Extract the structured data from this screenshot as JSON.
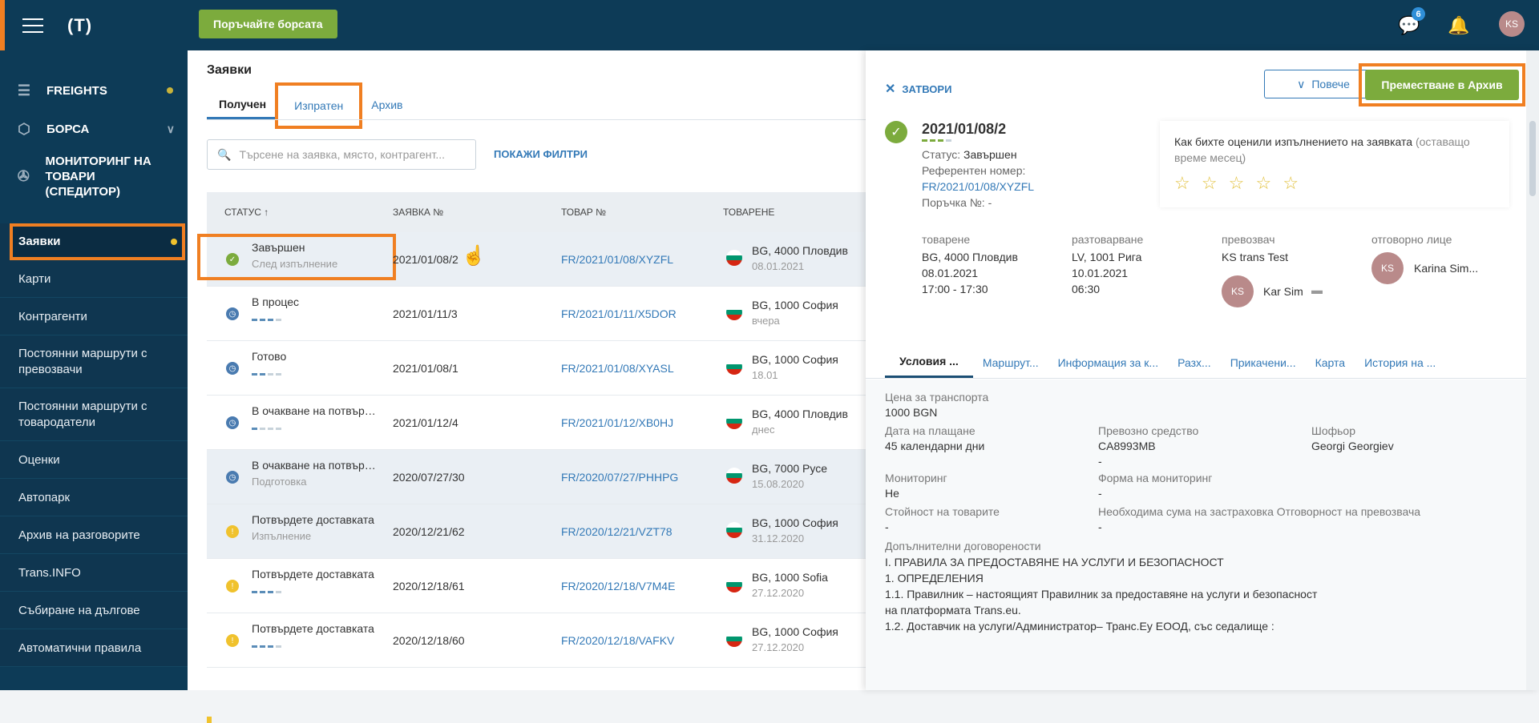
{
  "topbar": {
    "exchange_button": "Поръчайте борсата",
    "messages_badge": "6",
    "avatar": "KS"
  },
  "sidebar": {
    "logo": "(T)",
    "main": [
      {
        "label": "FREIGHTS",
        "icon": "freights-icon"
      },
      {
        "label": "БОРСА",
        "icon": "box-icon"
      },
      {
        "label": "МОНИТОРИНГ НА ТОВАРИ (СПЕДИТОР)",
        "icon": "satellite-icon"
      }
    ],
    "sub": [
      "Заявки",
      "Карти",
      "Контрагенти",
      "Постоянни маршрути с превозвачи",
      "Постоянни маршрути с товародатели",
      "Оценки",
      "Автопарк",
      "Архив на разговорите",
      "Trans.INFO",
      "Събиране на дългове",
      "Автоматични правила"
    ]
  },
  "main": {
    "title": "Заявки",
    "tabs": [
      "Получен",
      "Изпратен",
      "Архив"
    ],
    "search_placeholder": "Търсене на заявка, място, контрагент...",
    "filters": "ПОКАЖИ ФИЛТРИ",
    "columns": [
      "СТАТУС ↑",
      "ЗАЯВКА №",
      "ТОВАР №",
      "ТОВАРЕНЕ"
    ],
    "rows": [
      {
        "status": "Завършен",
        "sub": "След изпълнение",
        "number": "2021/01/08/2",
        "ref": "FR/2021/01/08/XYZFL",
        "loc": "BG, 4000 Пловдив",
        "date": "08.01.2021",
        "icon": "check"
      },
      {
        "status": "В процес",
        "sub": "",
        "number": "2021/01/11/3",
        "ref": "FR/2021/01/11/X5DOR",
        "loc": "BG, 1000 София",
        "date": "вчера",
        "icon": "clock"
      },
      {
        "status": "Готово",
        "sub": "",
        "number": "2021/01/08/1",
        "ref": "FR/2021/01/08/XYASL",
        "loc": "BG, 1000 София",
        "date": "18.01",
        "icon": "clock"
      },
      {
        "status": "В очакване на потвърждение",
        "sub": "",
        "number": "2021/01/12/4",
        "ref": "FR/2021/01/12/XB0HJ",
        "loc": "BG, 4000 Пловдив",
        "date": "днес",
        "icon": "clock"
      },
      {
        "status": "В очакване на потвърждение",
        "sub": "Подготовка",
        "number": "2020/07/27/30",
        "ref": "FR/2020/07/27/PHHPG",
        "loc": "BG, 7000 Русе",
        "date": "15.08.2020",
        "icon": "clock"
      },
      {
        "status": "Потвърдете доставката",
        "sub": "Изпълнение",
        "number": "2020/12/21/62",
        "ref": "FR/2020/12/21/VZT78",
        "loc": "BG, 1000 София",
        "date": "31.12.2020",
        "icon": "warn"
      },
      {
        "status": "Потвърдете доставката",
        "sub": "",
        "number": "2020/12/18/61",
        "ref": "FR/2020/12/18/V7M4E",
        "loc": "BG, 1000 Sofia",
        "date": "27.12.2020",
        "icon": "warn"
      },
      {
        "status": "Потвърдете доставката",
        "sub": "",
        "number": "2020/12/18/60",
        "ref": "FR/2020/12/18/VAFKV",
        "loc": "BG, 1000 София",
        "date": "27.12.2020",
        "icon": "warn"
      }
    ]
  },
  "panel": {
    "close": "ЗАТВОРИ",
    "more": "Повече",
    "archive": "Преместване в Архив",
    "order_number": "2021/01/08/2",
    "status_label": "Статус:",
    "status_value": "Завършен",
    "ref_label": "Референтен номер:",
    "ref_value": "FR/2021/01/08/XYZFL",
    "order_label": "Поръчка №: -",
    "rating_text": "Как бихте оценили изпълнението на заявката",
    "rating_hint": "(оставащо време месец)",
    "stars": "☆ ☆ ☆ ☆ ☆",
    "loading_h": "товарене",
    "loading_v": [
      "BG, 4000 Пловдив",
      "08.01.2021",
      "17:00 - 17:30"
    ],
    "unloading_h": "разтоварване",
    "unloading_v": [
      "LV, 1001 Рига",
      "10.01.2021",
      "06:30"
    ],
    "carrier_h": "превозвач",
    "carrier_v": "KS trans Test",
    "carrier_person": "Kar Sim",
    "carrier_avatar": "KS",
    "resp_h": "отговорно лице",
    "resp_v": "Karina Sim...",
    "resp_avatar": "KS",
    "tabs": [
      "Условия ...",
      "Маршрут...",
      "Информация за к...",
      "Разх...",
      "Прикачени...",
      "Карта",
      "История на ..."
    ],
    "fields": {
      "price_l": "Цена за транспорта",
      "price_v": "1000 BGN",
      "pay_l": "Дата на плащане",
      "pay_v": "45 календарни дни",
      "vehicle_l": "Превозно средство",
      "vehicle_v": "CA8993MB",
      "vehicle_v2": "-",
      "driver_l": "Шофьор",
      "driver_v": "Georgi Georgiev",
      "mon_l": "Мониторинг",
      "mon_v": "Не",
      "monform_l": "Форма на мониторинг",
      "monform_v": "-",
      "goods_l": "Стойност на товарите",
      "goods_v": "-",
      "ins_l": "Необходима сума на застраховка Отговорност на превозвача",
      "ins_v": "-",
      "extra_l": "Допълнителни договорености"
    },
    "terms": [
      "I. ПРАВИЛА ЗА ПРЕДОСТАВЯНЕ НА УСЛУГИ И БЕЗОПАСНОСТ",
      "1. ОПРЕДЕЛЕНИЯ",
      "1.1. Правилник – настоящият Правилник за предоставяне на услуги и безопасност",
      "на платформата Trans.eu.",
      "1.2. Доставчик на услуги/Администратор– Транс.Еу ЕООД, със седалище :"
    ]
  }
}
